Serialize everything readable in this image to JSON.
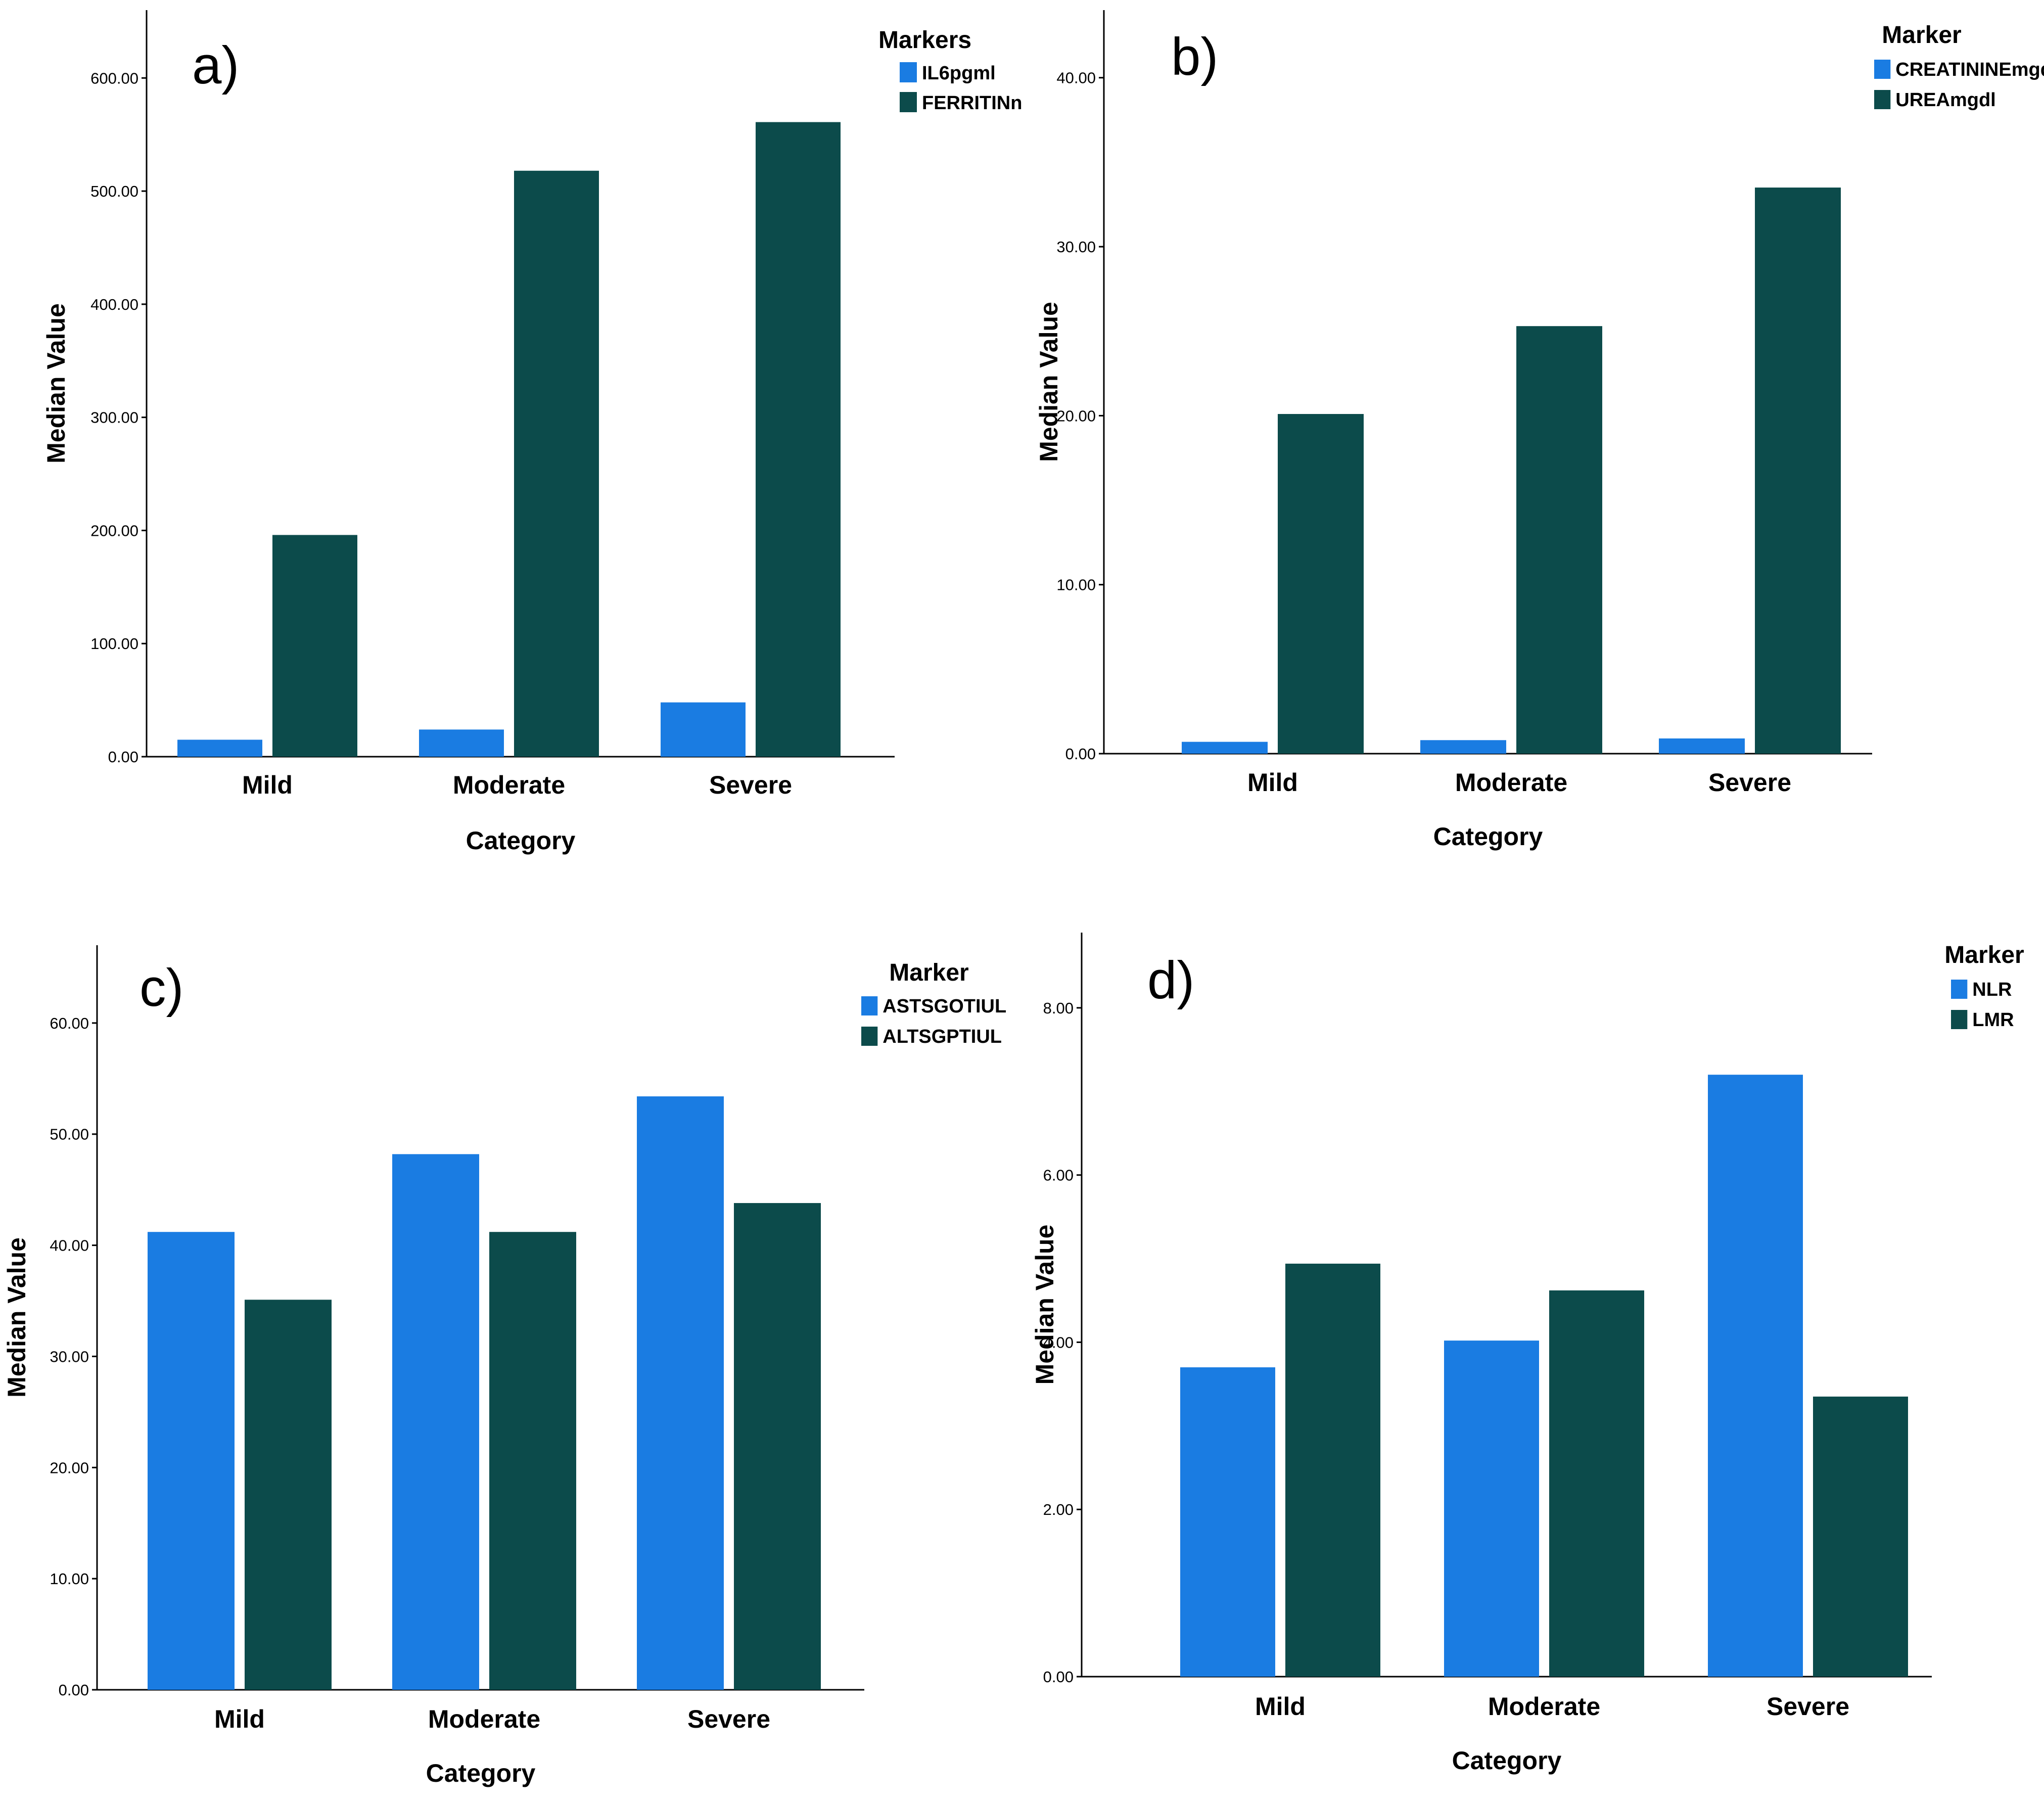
{
  "colors": {
    "series1": "#1a7ce2",
    "series2": "#0c4b4b",
    "axis": "#000000"
  },
  "chart_data": [
    {
      "type": "bar",
      "panel_label": "a)",
      "categories": [
        "Mild",
        "Moderate",
        "Severe"
      ],
      "series": [
        {
          "name": "IL6pgml",
          "values": [
            15,
            24,
            48
          ]
        },
        {
          "name": "FERRITINng",
          "values": [
            196,
            518,
            561
          ]
        }
      ],
      "title": "",
      "xlabel": "Category",
      "ylabel": "Median Value",
      "ylim": [
        0,
        660
      ],
      "yticks": [
        0,
        100,
        200,
        300,
        400,
        500,
        600
      ],
      "ytick_labels": [
        "0.00",
        "100.00",
        "200.00",
        "300.00",
        "400.00",
        "500.00",
        "600.00"
      ],
      "legend_title": "Markers",
      "legend_position": "top-right",
      "grid": false
    },
    {
      "type": "bar",
      "panel_label": "b)",
      "categories": [
        "Mild",
        "Moderate",
        "Severe"
      ],
      "series": [
        {
          "name": "CREATININEmgdl",
          "values": [
            0.7,
            0.8,
            0.9
          ]
        },
        {
          "name": "UREAmgdl",
          "values": [
            20.1,
            25.3,
            33.5
          ]
        }
      ],
      "title": "",
      "xlabel": "Category",
      "ylabel": "Median Value",
      "ylim": [
        0,
        44
      ],
      "yticks": [
        0,
        10,
        20,
        30,
        40
      ],
      "ytick_labels": [
        "0.00",
        "10.00",
        "20.00",
        "30.00",
        "40.00"
      ],
      "legend_title": "Marker",
      "legend_position": "top-right",
      "grid": false
    },
    {
      "type": "bar",
      "panel_label": "c)",
      "categories": [
        "Mild",
        "Moderate",
        "Severe"
      ],
      "series": [
        {
          "name": "ASTSGOTIUL",
          "values": [
            41.2,
            48.2,
            53.4
          ]
        },
        {
          "name": "ALTSGPTIUL",
          "values": [
            35.1,
            41.2,
            43.8
          ]
        }
      ],
      "title": "",
      "xlabel": "Category",
      "ylabel": "Median Value",
      "ylim": [
        0,
        67
      ],
      "yticks": [
        0,
        10,
        20,
        30,
        40,
        50,
        60
      ],
      "ytick_labels": [
        "0.00",
        "10.00",
        "20.00",
        "30.00",
        "40.00",
        "50.00",
        "60.00"
      ],
      "legend_title": "Marker",
      "legend_position": "top-right",
      "grid": false
    },
    {
      "type": "bar",
      "panel_label": "d)",
      "categories": [
        "Mild",
        "Moderate",
        "Severe"
      ],
      "series": [
        {
          "name": "NLR",
          "values": [
            3.7,
            4.02,
            7.2
          ]
        },
        {
          "name": "LMR",
          "values": [
            4.94,
            4.62,
            3.35
          ]
        }
      ],
      "title": "",
      "xlabel": "Category",
      "ylabel": "Median Value",
      "ylim": [
        0,
        8.9
      ],
      "yticks": [
        0,
        2,
        4,
        6,
        8
      ],
      "ytick_labels": [
        "0.00",
        "2.00",
        "4.00",
        "6.00",
        "8.00"
      ],
      "legend_title": "Marker",
      "legend_position": "top-right",
      "grid": false
    }
  ]
}
